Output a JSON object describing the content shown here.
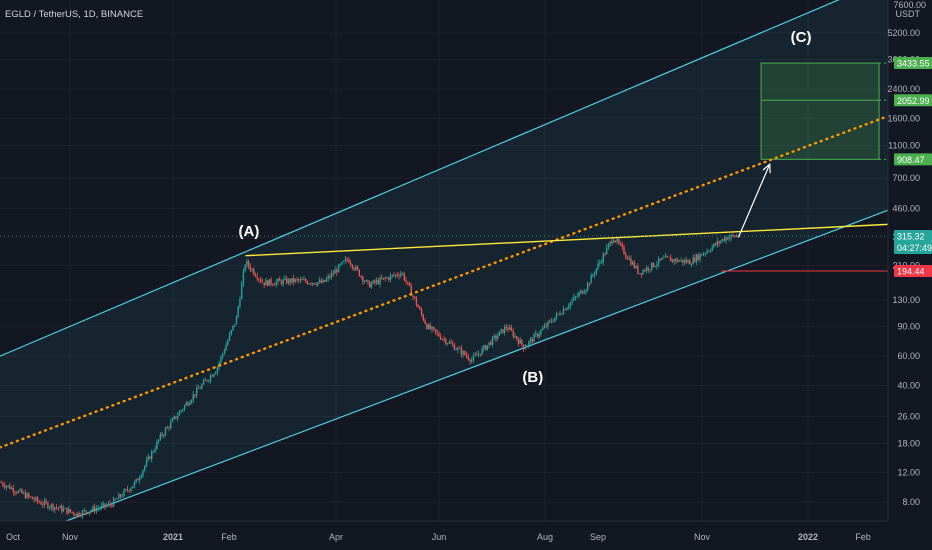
{
  "header": {
    "symbol_label": "EGLD / TetherUS, 1D, BINANCE"
  },
  "price_scale": {
    "currency": "USDT",
    "top_label": "7600.00",
    "ticks": [
      "5200.00",
      "3600.00",
      "2400.00",
      "1600.00",
      "1100.00",
      "700.00",
      "460.00",
      "310.00",
      "210.00",
      "130.00",
      "90.00",
      "60.00",
      "40.00",
      "26.00",
      "18.00",
      "12.00",
      "8.00"
    ]
  },
  "price_badges": [
    {
      "value": "3433.55",
      "color": "#4caf50"
    },
    {
      "value": "2052.99",
      "color": "#4caf50"
    },
    {
      "value": "908.47",
      "color": "#4caf50"
    },
    {
      "value": "315.32",
      "sub": "04:27:49",
      "color": "#26a69a"
    },
    {
      "value": "194.44",
      "color": "#f23645"
    }
  ],
  "time_axis": {
    "labels": [
      "Oct",
      "Nov",
      "2021",
      "Feb",
      "Apr",
      "Jun",
      "Aug",
      "Sep",
      "Nov",
      "2022",
      "Feb"
    ]
  },
  "annotations": {
    "wave_a": "(A)",
    "wave_b": "(B)",
    "wave_c": "(C)"
  },
  "colors": {
    "up": "#26a69a",
    "down": "#ef5350",
    "channel": "#4dd0e1",
    "trend": "#ffeb3b",
    "midline": "#ff9800",
    "target_box": "#4caf50",
    "stop": "#f23645"
  },
  "chart_data": {
    "type": "candlestick",
    "symbol": "EGLD / TetherUS",
    "interval": "1D",
    "exchange": "BINANCE",
    "y_scale": "log",
    "ylim": [
      6.5,
      8000
    ],
    "price_path": [
      [
        "2020-09-25",
        10.5
      ],
      [
        "2020-10-15",
        8.0
      ],
      [
        "2020-11-05",
        6.8
      ],
      [
        "2020-11-25",
        7.7
      ],
      [
        "2020-12-10",
        10.5
      ],
      [
        "2020-12-25",
        20.0
      ],
      [
        "2021-01-05",
        28.0
      ],
      [
        "2021-01-15",
        38.0
      ],
      [
        "2021-01-25",
        50.0
      ],
      [
        "2021-02-05",
        100.0
      ],
      [
        "2021-02-10",
        220.0
      ],
      [
        "2021-02-20",
        165.0
      ],
      [
        "2021-03-10",
        170.0
      ],
      [
        "2021-03-25",
        165.0
      ],
      [
        "2021-04-08",
        230.0
      ],
      [
        "2021-04-20",
        160.0
      ],
      [
        "2021-05-10",
        190.0
      ],
      [
        "2021-05-25",
        90.0
      ],
      [
        "2021-06-20",
        57.0
      ],
      [
        "2021-07-10",
        90.0
      ],
      [
        "2021-07-20",
        68.0
      ],
      [
        "2021-08-10",
        110.0
      ],
      [
        "2021-08-25",
        155.0
      ],
      [
        "2021-09-10",
        310.0
      ],
      [
        "2021-09-25",
        190.0
      ],
      [
        "2021-10-10",
        230.0
      ],
      [
        "2021-10-25",
        220.0
      ],
      [
        "2021-11-15",
        310.0
      ],
      [
        "2021-11-22",
        315.32
      ]
    ],
    "current_price": 315.32,
    "bar_countdown": "04:27:49",
    "target_levels": [
      3433.55,
      2052.99,
      908.47
    ],
    "stop_level": 194.44,
    "drawings": {
      "ascending_channel": {
        "upper": [
          [
            "2020-09-25",
            60
          ],
          [
            "2021-12-31",
            6800
          ]
        ],
        "lower": [
          [
            "2020-11-05",
            6.5
          ],
          [
            "2022-02-15",
            450
          ]
        ]
      },
      "resistance_line": [
        [
          "2021-02-10",
          240
        ],
        [
          "2022-02-15",
          370
        ]
      ],
      "midline": [
        [
          "2020-09-25",
          17
        ],
        [
          "2022-02-15",
          1650
        ]
      ],
      "projection_arrow": [
        [
          "2021-11-22",
          310
        ],
        [
          "2021-12-10",
          850
        ]
      ],
      "target_box": {
        "from": "2021-12-05",
        "to": "2022-02-10",
        "top": 3433.55,
        "bottom": 908.47,
        "mid": 2052.99
      }
    }
  }
}
